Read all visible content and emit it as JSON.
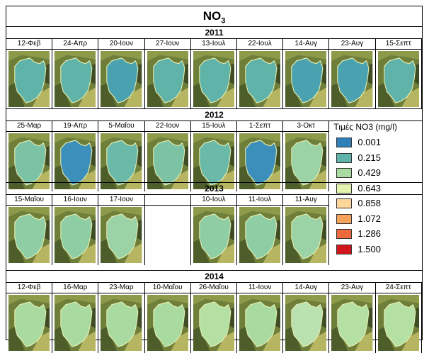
{
  "title": "NO",
  "title_sub": "3",
  "legend": {
    "title": "Τιμές NO3 (mg/l)",
    "entries": [
      {
        "value": "0.001",
        "color": "#2f7fb9"
      },
      {
        "value": "0.215",
        "color": "#5fb3a8"
      },
      {
        "value": "0.429",
        "color": "#a9dba0"
      },
      {
        "value": "0.643",
        "color": "#e5f4ad"
      },
      {
        "value": "0.858",
        "color": "#fcd69a"
      },
      {
        "value": "1.072",
        "color": "#f7a25a"
      },
      {
        "value": "1.286",
        "color": "#ec6a3c"
      },
      {
        "value": "1.500",
        "color": "#d1171c"
      }
    ]
  },
  "years": [
    {
      "year": "2011",
      "dates": [
        "12-Φεβ",
        "24-Απρ",
        "20-Ιουν",
        "27-Ιουν",
        "13-Ιουλ",
        "22-Ιουλ",
        "14-Αυγ",
        "23-Αυγ",
        "15-Σεπτ"
      ],
      "fills": [
        "#5fb3a8",
        "#5fb3a8",
        "#4aa2b0",
        "#5fb3a8",
        "#5fb3a8",
        "#5fb3a8",
        "#4aa2b0",
        "#4aa2b0",
        "#5fb3a8"
      ]
    },
    {
      "year": "2012",
      "dates": [
        "25-Μαρ",
        "19-Απρ",
        "5-Μαΐου",
        "22-Ιουν",
        "15-Ιουλ",
        "1-Σεπτ",
        "3-Οκτ"
      ],
      "fills": [
        "#7cc3a6",
        "#3c8fbb",
        "#6bbaa9",
        "#7cc3a6",
        "#6bbaa9",
        "#3c8fbb",
        "#9bd2a6"
      ]
    },
    {
      "year": "2013",
      "dates": [
        "15-Μαΐου",
        "16-Ιουν",
        "17-Ιουν",
        "",
        "10-Ιουλ",
        "11-Ιουλ",
        "11-Αυγ"
      ],
      "fills": [
        "#8fcda4",
        "#8fcda4",
        "#9bd2a6",
        "",
        "#8fcda4",
        "#8fcda4",
        "#9bd2a6"
      ]
    },
    {
      "year": "2014",
      "dates": [
        "12-Φεβ",
        "16-Μαρ",
        "23-Μαρ",
        "10-Μαΐου",
        "26-Μαΐου",
        "11-Ιουν",
        "14-Αυγ",
        "23-Αυγ",
        "24-Σεπτ"
      ],
      "fills": [
        "#a9dba0",
        "#a9dba0",
        "#a9dba0",
        "#a9dba0",
        "#b5e0a3",
        "#a9dba0",
        "#b9e2b0",
        "#b5e0a3",
        "#b5e0a3"
      ]
    }
  ]
}
